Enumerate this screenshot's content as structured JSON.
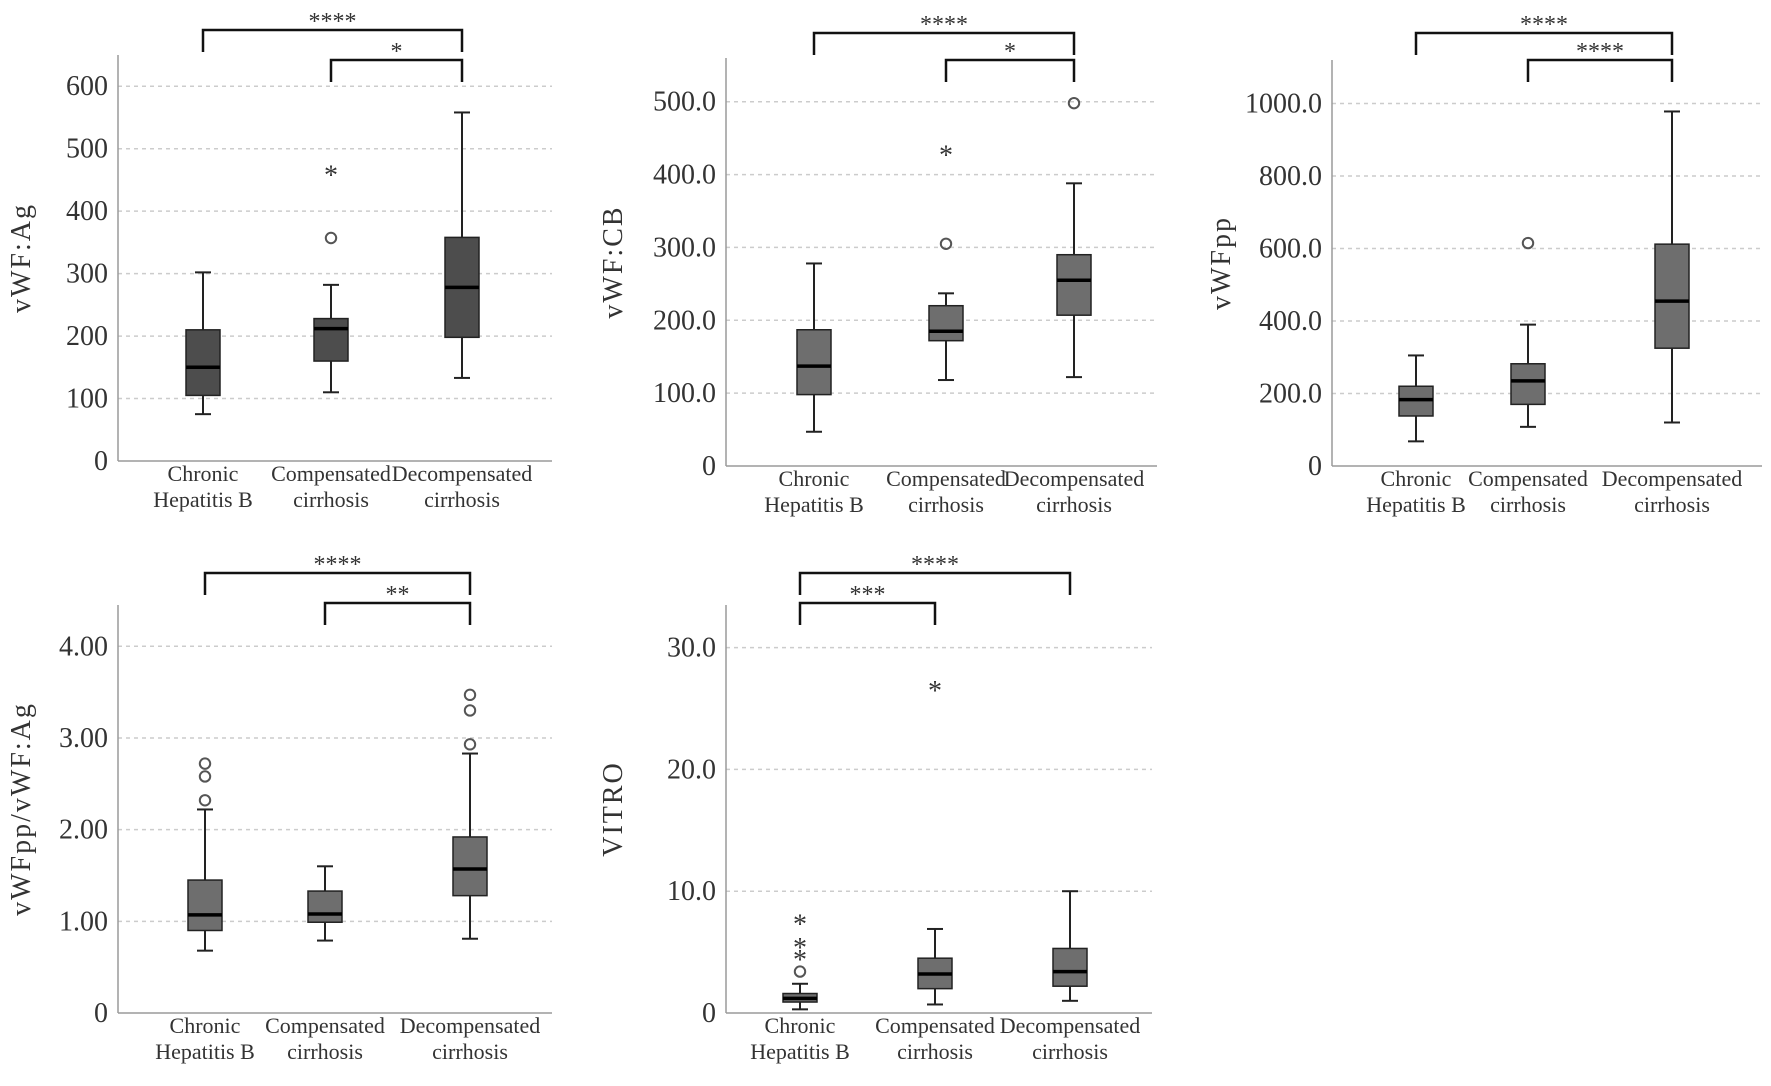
{
  "chart_data": [
    {
      "type": "box",
      "ylabel": "vWF:Ag",
      "ylim": [
        0,
        650
      ],
      "ytick_values": [
        0,
        100,
        200,
        300,
        400,
        500,
        600
      ],
      "ytick_labels": [
        "0",
        "100",
        "200",
        "300",
        "400",
        "500",
        "600"
      ],
      "categories": [
        "Chronic\nHepatitis B",
        "Compensated\ncirrhosis",
        "Decompensated\ncirrhosis"
      ],
      "grid": true,
      "box_color": "#4d4d4d",
      "boxes": [
        {
          "whisker_low": 75,
          "q1": 105,
          "median": 150,
          "q3": 210,
          "whisker_high": 302,
          "outliers": [],
          "extremes": []
        },
        {
          "whisker_low": 110,
          "q1": 160,
          "median": 212,
          "q3": 228,
          "whisker_high": 282,
          "outliers": [
            357
          ],
          "extremes": [
            462
          ]
        },
        {
          "whisker_low": 133,
          "q1": 198,
          "median": 278,
          "q3": 358,
          "whisker_high": 558,
          "outliers": [],
          "extremes": []
        }
      ],
      "significance": [
        {
          "from": 0,
          "to": 2,
          "label": "****"
        },
        {
          "from": 1,
          "to": 2,
          "label": "*"
        }
      ]
    },
    {
      "type": "box",
      "ylabel": "vWF:CB",
      "ylim": [
        0,
        560
      ],
      "ytick_values": [
        0,
        100,
        200,
        300,
        400,
        500
      ],
      "ytick_labels": [
        "0",
        "100.0",
        "200.0",
        "300.0",
        "400.0",
        "500.0"
      ],
      "categories": [
        "Chronic\nHepatitis B",
        "Compensated\ncirrhosis",
        "Decompensated\ncirrhosis"
      ],
      "grid": true,
      "box_color": "#6e6e6e",
      "boxes": [
        {
          "whisker_low": 47,
          "q1": 98,
          "median": 137,
          "q3": 187,
          "whisker_high": 278,
          "outliers": [],
          "extremes": []
        },
        {
          "whisker_low": 118,
          "q1": 172,
          "median": 185,
          "q3": 220,
          "whisker_high": 237,
          "outliers": [
            305
          ],
          "extremes": [
            430
          ]
        },
        {
          "whisker_low": 122,
          "q1": 207,
          "median": 255,
          "q3": 290,
          "whisker_high": 388,
          "outliers": [
            498
          ],
          "extremes": []
        }
      ],
      "significance": [
        {
          "from": 0,
          "to": 2,
          "label": "****"
        },
        {
          "from": 1,
          "to": 2,
          "label": "*"
        }
      ]
    },
    {
      "type": "box",
      "ylabel": "vWFpp",
      "ylim": [
        0,
        1120
      ],
      "ytick_values": [
        0,
        200,
        400,
        600,
        800,
        1000
      ],
      "ytick_labels": [
        "0",
        "200.0",
        "400.0",
        "600.0",
        "800.0",
        "1000.0"
      ],
      "categories": [
        "Chronic\nHepatitis B",
        "Compensated\ncirrhosis",
        "Decompensated\ncirrhosis"
      ],
      "grid": true,
      "box_color": "#6e6e6e",
      "boxes": [
        {
          "whisker_low": 68,
          "q1": 138,
          "median": 183,
          "q3": 220,
          "whisker_high": 305,
          "outliers": [],
          "extremes": []
        },
        {
          "whisker_low": 108,
          "q1": 170,
          "median": 235,
          "q3": 282,
          "whisker_high": 390,
          "outliers": [
            615
          ],
          "extremes": []
        },
        {
          "whisker_low": 120,
          "q1": 325,
          "median": 455,
          "q3": 612,
          "whisker_high": 978,
          "outliers": [],
          "extremes": []
        }
      ],
      "significance": [
        {
          "from": 0,
          "to": 2,
          "label": "****"
        },
        {
          "from": 1,
          "to": 2,
          "label": "****"
        }
      ]
    },
    {
      "type": "box",
      "ylabel": "vWFpp/vWF:Ag",
      "ylim": [
        0,
        4.45
      ],
      "ytick_values": [
        0,
        1,
        2,
        3,
        4
      ],
      "ytick_labels": [
        "0",
        "1.00",
        "2.00",
        "3.00",
        "4.00"
      ],
      "categories": [
        "Chronic\nHepatitis B",
        "Compensated\ncirrhosis",
        "Decompensated\ncirrhosis"
      ],
      "grid": true,
      "box_color": "#6e6e6e",
      "boxes": [
        {
          "whisker_low": 0.68,
          "q1": 0.9,
          "median": 1.07,
          "q3": 1.45,
          "whisker_high": 2.22,
          "outliers": [
            2.32,
            2.58,
            2.72
          ],
          "extremes": []
        },
        {
          "whisker_low": 0.79,
          "q1": 0.99,
          "median": 1.08,
          "q3": 1.33,
          "whisker_high": 1.6,
          "outliers": [],
          "extremes": []
        },
        {
          "whisker_low": 0.81,
          "q1": 1.28,
          "median": 1.57,
          "q3": 1.92,
          "whisker_high": 2.83,
          "outliers": [
            2.93,
            3.3,
            3.47
          ],
          "extremes": []
        }
      ],
      "significance": [
        {
          "from": 0,
          "to": 2,
          "label": "****"
        },
        {
          "from": 1,
          "to": 2,
          "label": "**"
        }
      ]
    },
    {
      "type": "box",
      "ylabel": "VITRO",
      "ylim": [
        0,
        33.5
      ],
      "ytick_values": [
        0,
        10,
        20,
        30
      ],
      "ytick_labels": [
        "0",
        "10.0",
        "20.0",
        "30.0"
      ],
      "categories": [
        "Chronic\nHepatitis B",
        "Compensated\ncirrhosis",
        "Decompensated\ncirrhosis"
      ],
      "grid": true,
      "box_color": "#6e6e6e",
      "boxes": [
        {
          "whisker_low": 0.3,
          "q1": 0.9,
          "median": 1.2,
          "q3": 1.6,
          "whisker_high": 2.4,
          "outliers": [
            3.4
          ],
          "extremes": [
            4.6,
            5.6,
            7.5
          ]
        },
        {
          "whisker_low": 0.7,
          "q1": 2.0,
          "median": 3.2,
          "q3": 4.5,
          "whisker_high": 6.9,
          "outliers": [],
          "extremes": [
            26.7
          ]
        },
        {
          "whisker_low": 1.0,
          "q1": 2.2,
          "median": 3.4,
          "q3": 5.3,
          "whisker_high": 10.0,
          "outliers": [],
          "extremes": []
        }
      ],
      "significance": [
        {
          "from": 0,
          "to": 2,
          "label": "****"
        },
        {
          "from": 0,
          "to": 1,
          "label": "***"
        }
      ]
    }
  ]
}
